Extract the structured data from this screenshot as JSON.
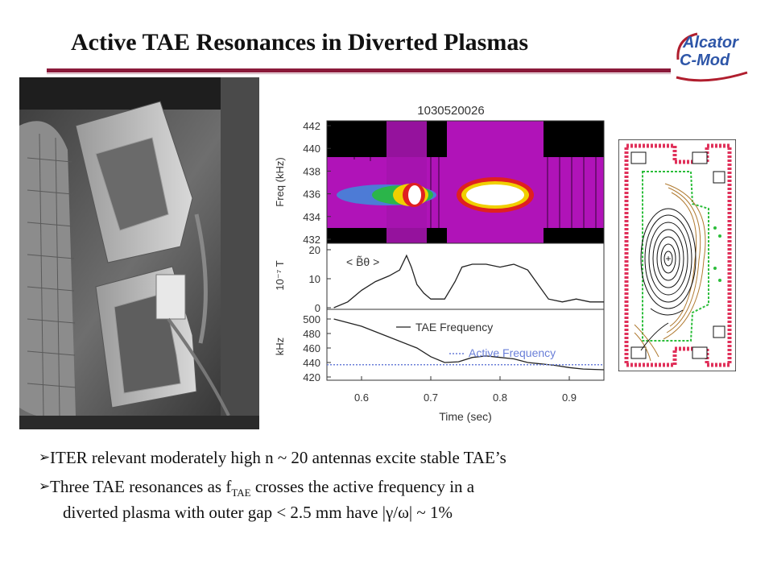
{
  "slide": {
    "title": "Active TAE Resonances in Diverted Plasmas",
    "logo": {
      "line1": "Alcator",
      "line2": "C-Mod"
    },
    "colors": {
      "rule": "#8b1a3a",
      "logo": "#2e56a8"
    }
  },
  "figure": {
    "shot_label": "1030520026",
    "spectrogram": {
      "ylabel": "Freq (kHz)",
      "yticks": [
        "442",
        "440",
        "438",
        "436",
        "434",
        "432"
      ],
      "ylim": [
        432,
        442
      ]
    },
    "amplitude": {
      "ylabel": "10⁻⁷ T",
      "yticks": [
        "20",
        "10",
        "0"
      ],
      "ylim": [
        0,
        20
      ],
      "legend": "< B̃θ >"
    },
    "frequency": {
      "ylabel": "kHz",
      "yticks": [
        "500",
        "480",
        "460",
        "440",
        "420"
      ],
      "ylim": [
        420,
        500
      ],
      "legend_tae": "TAE Frequency",
      "legend_active": "Active Frequency"
    },
    "xaxis": {
      "label": "Time (sec)",
      "ticks": [
        "0.6",
        "0.7",
        "0.8",
        "0.9"
      ],
      "xlim": [
        0.55,
        0.95
      ]
    }
  },
  "bullets": {
    "b1": "ITER relevant moderately high n ~ 20 antennas excite stable TAE’s",
    "b2_pre": "Three TAE resonances as f",
    "b2_sub": "TAE",
    "b2_post": " crosses the active frequency in a",
    "b2_line2": "diverted plasma with outer gap < 2.5 mm have |γ/ω| ~ 1%"
  }
}
